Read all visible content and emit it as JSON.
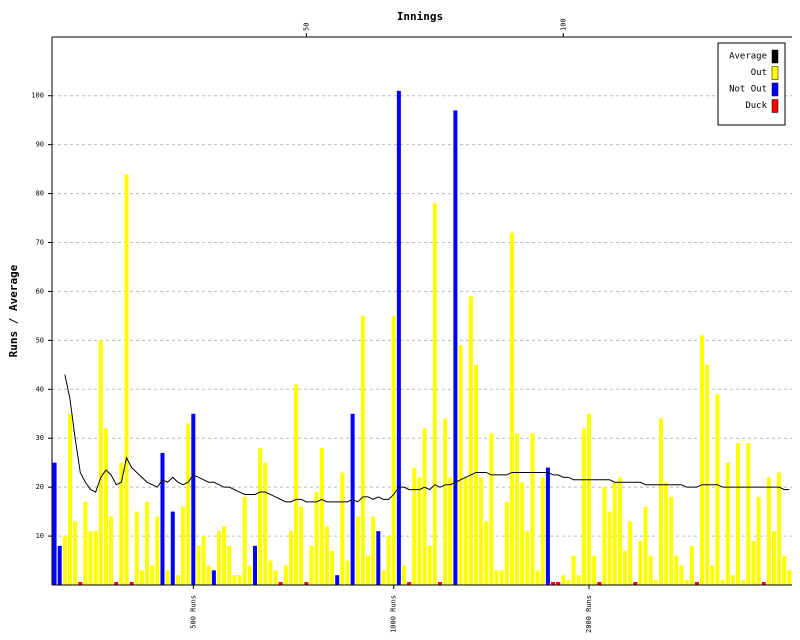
{
  "chart_data": {
    "type": "bar",
    "x_title": "Innings",
    "y_title": "Runs / Average",
    "x": [
      1,
      2,
      3,
      4,
      5,
      6,
      7,
      8,
      9,
      10,
      11,
      12,
      13,
      14,
      15,
      16,
      17,
      18,
      19,
      20,
      21,
      22,
      23,
      24,
      25,
      26,
      27,
      28,
      29,
      30,
      31,
      32,
      33,
      34,
      35,
      36,
      37,
      38,
      39,
      40,
      41,
      42,
      43,
      44,
      45,
      46,
      47,
      48,
      49,
      50,
      51,
      52,
      53,
      54,
      55,
      56,
      57,
      58,
      59,
      60,
      61,
      62,
      63,
      64,
      65,
      66,
      67,
      68,
      69,
      70,
      71,
      72,
      73,
      74,
      75,
      76,
      77,
      78,
      79,
      80,
      81,
      82,
      83,
      84,
      85,
      86,
      87,
      88,
      89,
      90,
      91,
      92,
      93,
      94,
      95,
      96,
      97,
      98,
      99,
      100,
      101,
      102,
      103,
      104,
      105,
      106,
      107,
      108,
      109,
      110,
      111,
      112,
      113,
      114,
      115,
      116,
      117,
      118,
      119,
      120,
      121,
      122,
      123,
      124,
      125,
      126,
      127,
      128,
      129,
      130,
      131,
      132,
      133,
      134,
      135,
      136,
      137,
      138,
      139,
      140,
      141,
      142,
      143,
      144
    ],
    "xlim": [
      0.5,
      144.5
    ],
    "xticks": [
      50,
      100
    ],
    "x2ticks": [
      {
        "value": 28,
        "label": "500 Runs"
      },
      {
        "value": 67,
        "label": "1000 Runs"
      },
      {
        "value": 105,
        "label": "2000 Runs"
      }
    ],
    "ylim": [
      0,
      112
    ],
    "yticks": [
      10,
      20,
      30,
      40,
      50,
      60,
      70,
      80,
      90,
      100
    ],
    "grid": true,
    "legend": "top-right",
    "series": [
      {
        "name": "Average",
        "color": "#000000",
        "kind": "line",
        "values": [
          null,
          null,
          43,
          38,
          30,
          23,
          21,
          19.5,
          19,
          22,
          23.5,
          22.5,
          20.5,
          21,
          26,
          24,
          23,
          22,
          21,
          20.5,
          20,
          21.5,
          21,
          22,
          21,
          20.5,
          21,
          22.5,
          22,
          21.5,
          21,
          21,
          20.5,
          20,
          20,
          19.5,
          19,
          18.5,
          18.5,
          18.5,
          19,
          19,
          18.5,
          18,
          17.5,
          17,
          17,
          17.5,
          17.5,
          17,
          17,
          17,
          17.5,
          17,
          17,
          17,
          17,
          17,
          17.5,
          17,
          18,
          18,
          17.5,
          18,
          17.5,
          17.5,
          18.5,
          20,
          20,
          19.5,
          19.5,
          19.5,
          20,
          19.5,
          20.5,
          20,
          20.5,
          20.5,
          21,
          21.5,
          22,
          22.5,
          23,
          23,
          23,
          22.5,
          22.5,
          22.5,
          22.5,
          23,
          23,
          23,
          23,
          23,
          23,
          23,
          23,
          22.5,
          22.5,
          22,
          22,
          21.5,
          21.5,
          21.5,
          21.5,
          21.5,
          21.5,
          21.5,
          21.5,
          21,
          21,
          21,
          21,
          21,
          21,
          20.5,
          20.5,
          20.5,
          20.5,
          20.5,
          20.5,
          20.5,
          20.5,
          20,
          20,
          20,
          20.5,
          20.5,
          20.5,
          20.5,
          20,
          20,
          20,
          20,
          20,
          20,
          20,
          20,
          20,
          20,
          20,
          20,
          19.5,
          19.5
        ]
      },
      {
        "name": "Out",
        "color": "#ffff00",
        "kind": "bar",
        "values": [
          null,
          null,
          10,
          35,
          13,
          null,
          17,
          11,
          11,
          50,
          32,
          14,
          null,
          25,
          84,
          null,
          15,
          3,
          17,
          4,
          14,
          null,
          3,
          null,
          2,
          16,
          33,
          null,
          8,
          10,
          4,
          null,
          11,
          12,
          8,
          2,
          2,
          18,
          4,
          null,
          28,
          25,
          5,
          3,
          null,
          4,
          11,
          41,
          16,
          null,
          8,
          19,
          28,
          12,
          7,
          null,
          23,
          5,
          null,
          14,
          55,
          6,
          14,
          null,
          3,
          10,
          55,
          null,
          4,
          null,
          24,
          22,
          32,
          8,
          78,
          null,
          34,
          22,
          null,
          49,
          22,
          59,
          45,
          22,
          13,
          31,
          3,
          3,
          17,
          72,
          31,
          21,
          11,
          31,
          3,
          22,
          null,
          null,
          null,
          2,
          1,
          6,
          2,
          32,
          35,
          6,
          null,
          20,
          15,
          21,
          22,
          7,
          13,
          null,
          9,
          16,
          6,
          1,
          34,
          21,
          18,
          6,
          4,
          1,
          8,
          null,
          51,
          45,
          4,
          39,
          1,
          25,
          2,
          29,
          1,
          29,
          9,
          18,
          null,
          22,
          11,
          23,
          6,
          3
        ]
      },
      {
        "name": "Not Out",
        "color": "#0000ff",
        "kind": "bar",
        "values": [
          25,
          8,
          null,
          null,
          null,
          null,
          null,
          null,
          null,
          null,
          null,
          null,
          null,
          null,
          null,
          null,
          null,
          null,
          null,
          null,
          null,
          27,
          null,
          15,
          null,
          null,
          null,
          35,
          null,
          null,
          null,
          3,
          null,
          null,
          null,
          null,
          null,
          null,
          null,
          8,
          null,
          null,
          null,
          null,
          null,
          null,
          null,
          null,
          null,
          null,
          null,
          null,
          null,
          null,
          null,
          2,
          null,
          null,
          35,
          null,
          null,
          null,
          null,
          11,
          null,
          null,
          null,
          101,
          null,
          null,
          null,
          null,
          null,
          null,
          null,
          null,
          null,
          null,
          97,
          null,
          null,
          null,
          null,
          null,
          null,
          null,
          null,
          null,
          null,
          null,
          null,
          null,
          null,
          null,
          null,
          null,
          24,
          null,
          null,
          null,
          null,
          null,
          null,
          null,
          null,
          null,
          null,
          null,
          null,
          null,
          null,
          null,
          null,
          null,
          null,
          null,
          null,
          null,
          null,
          null,
          null,
          null,
          null,
          null,
          null,
          null,
          null,
          null,
          null,
          null,
          null,
          null,
          null,
          null,
          null,
          null,
          null,
          null,
          null,
          null,
          null,
          null,
          null,
          null
        ]
      },
      {
        "name": "Duck",
        "color": "#ff0000",
        "kind": "marker",
        "values": [
          null,
          null,
          null,
          null,
          null,
          0,
          null,
          null,
          null,
          null,
          null,
          null,
          0,
          null,
          null,
          0,
          null,
          null,
          null,
          null,
          null,
          null,
          null,
          null,
          null,
          null,
          null,
          null,
          null,
          null,
          null,
          null,
          null,
          null,
          null,
          null,
          null,
          null,
          null,
          null,
          null,
          null,
          null,
          null,
          0,
          null,
          null,
          null,
          null,
          0,
          null,
          null,
          null,
          null,
          null,
          null,
          null,
          null,
          null,
          null,
          null,
          null,
          null,
          null,
          null,
          null,
          null,
          null,
          null,
          0,
          null,
          null,
          null,
          null,
          null,
          0,
          null,
          null,
          null,
          null,
          null,
          null,
          null,
          null,
          null,
          null,
          null,
          null,
          null,
          null,
          null,
          null,
          null,
          null,
          null,
          null,
          null,
          0,
          0,
          null,
          null,
          null,
          null,
          null,
          null,
          null,
          0,
          null,
          null,
          null,
          null,
          null,
          null,
          0,
          null,
          null,
          null,
          null,
          null,
          null,
          null,
          null,
          null,
          null,
          null,
          0,
          null,
          null,
          null,
          null,
          null,
          null,
          null,
          null,
          null,
          null,
          null,
          null,
          0,
          null,
          null,
          null,
          null,
          null
        ]
      }
    ]
  }
}
